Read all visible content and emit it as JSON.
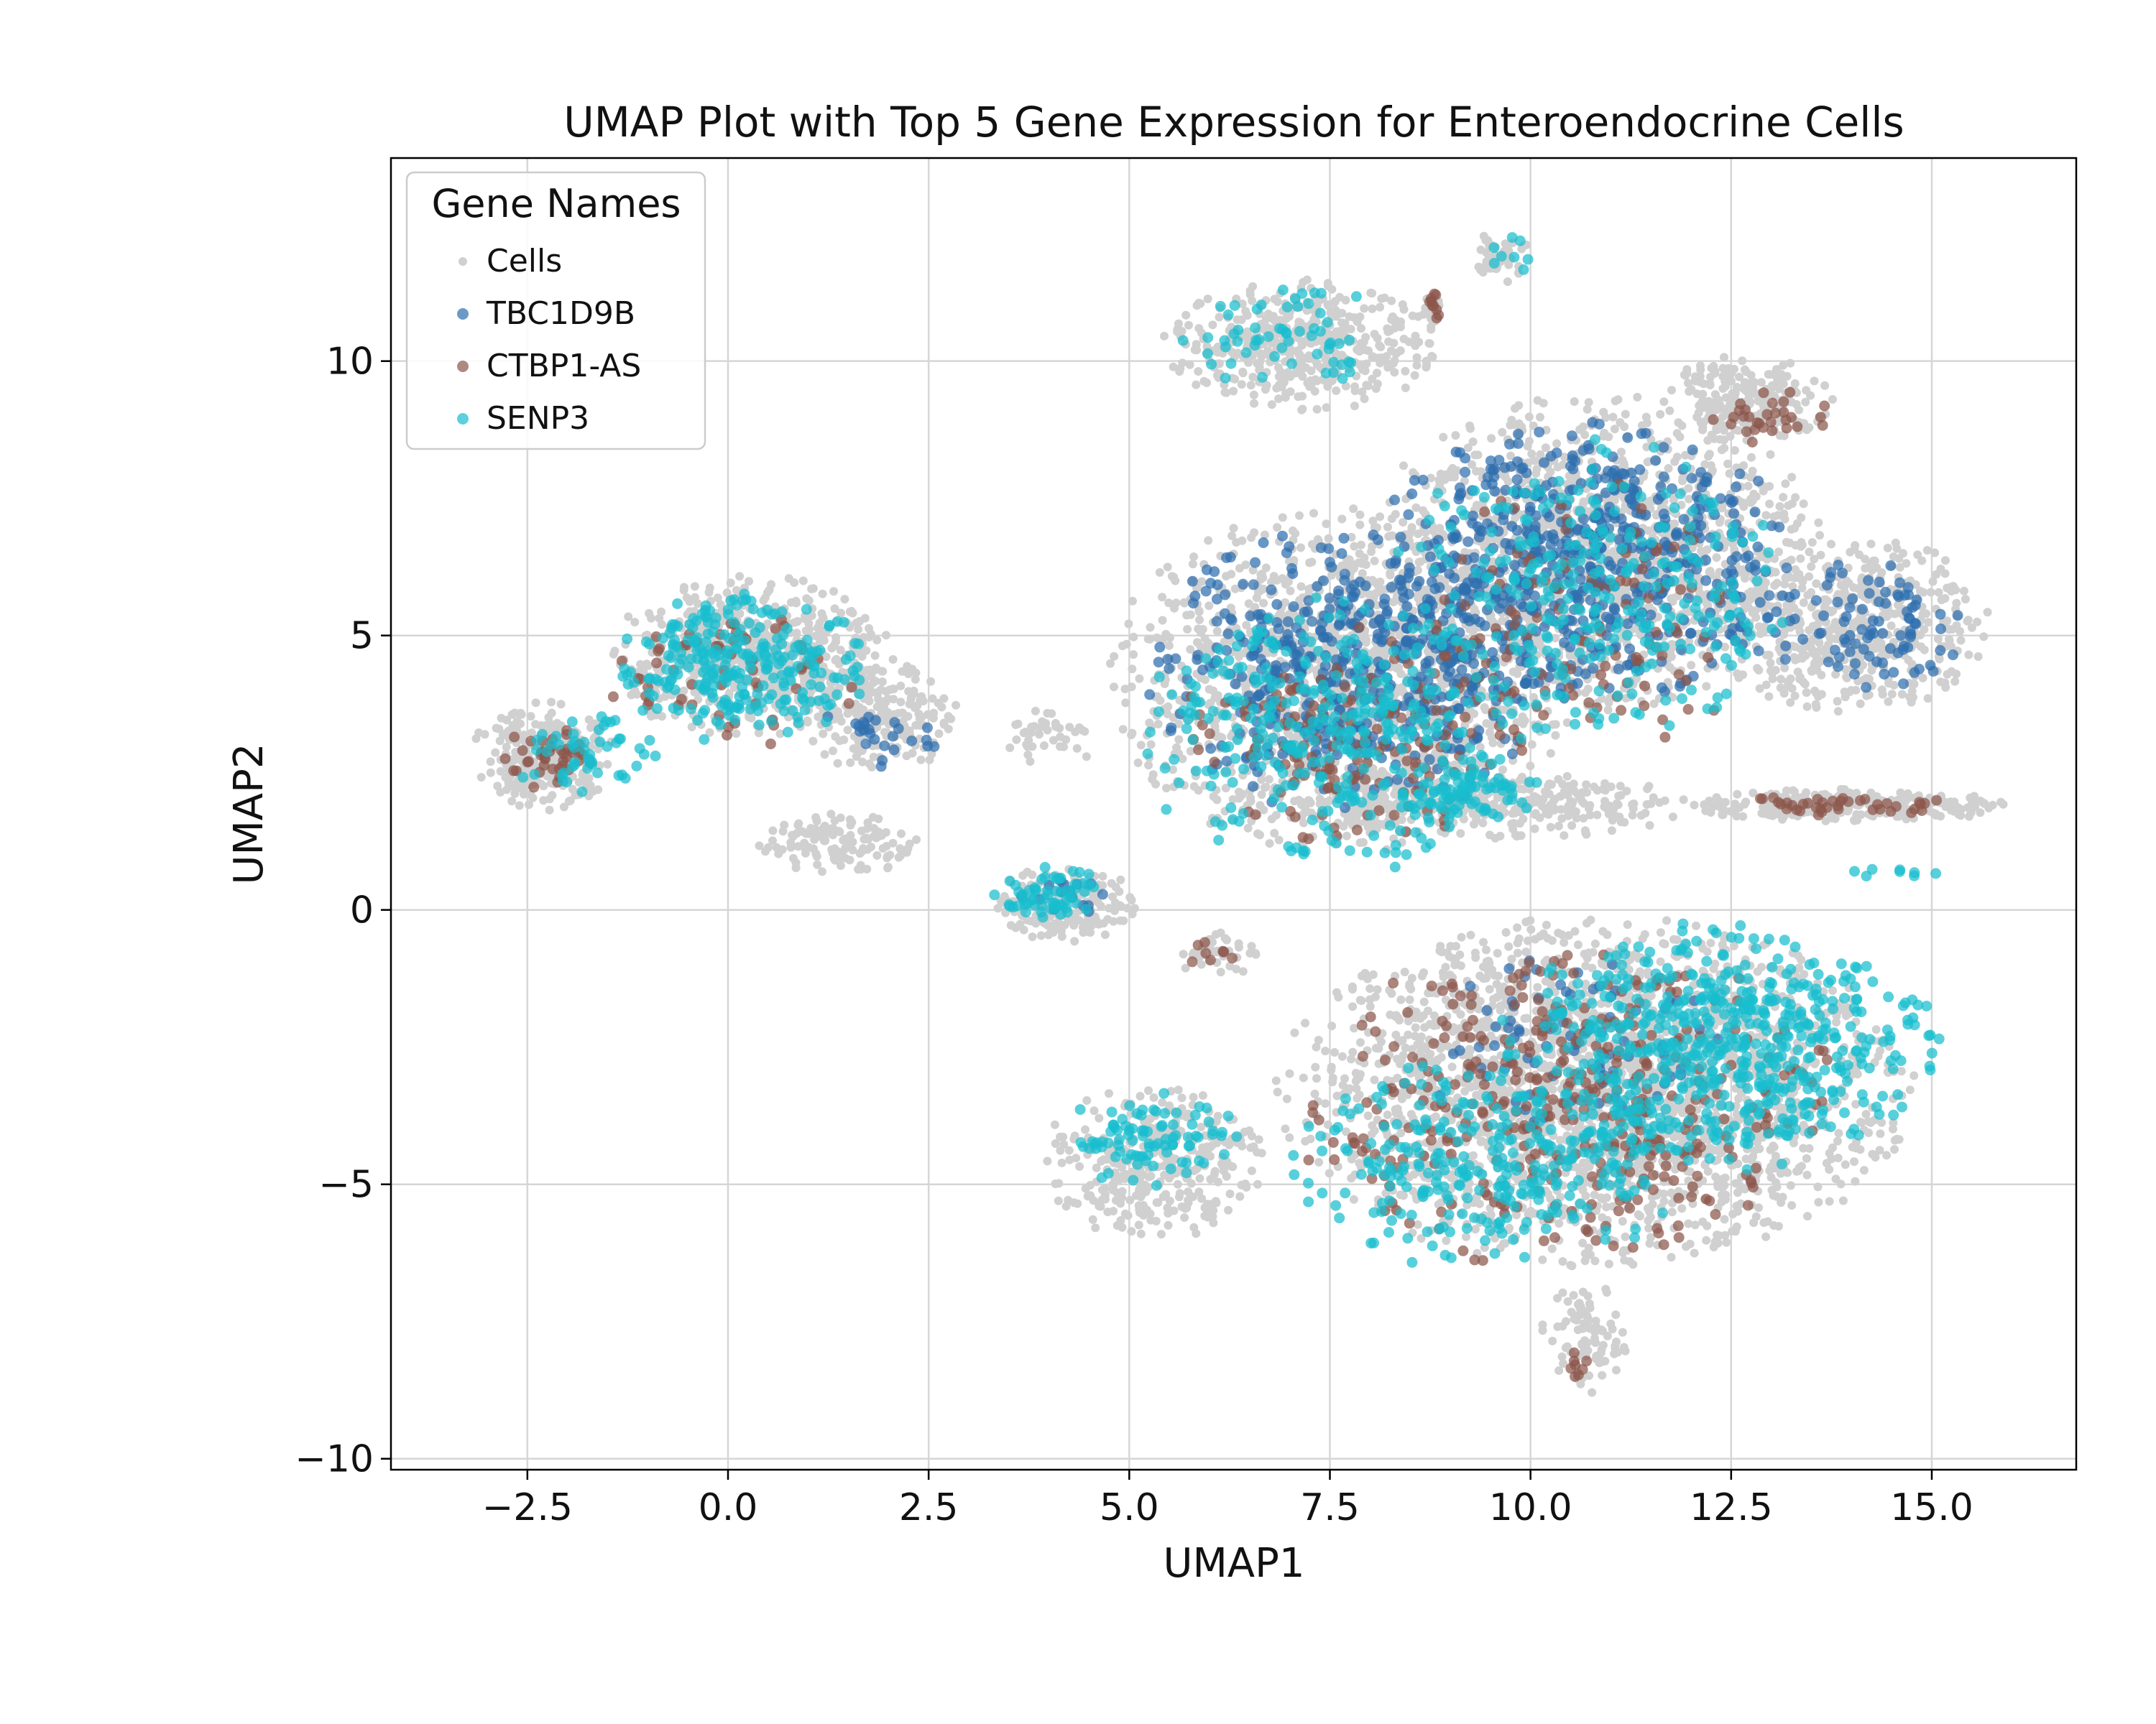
{
  "chart_data": {
    "type": "scatter",
    "title": "UMAP Plot with Top 5 Gene Expression for Enteroendocrine Cells",
    "xlabel": "UMAP1",
    "ylabel": "UMAP2",
    "xlim": [
      -4.2,
      16.8
    ],
    "ylim": [
      -10.2,
      13.7
    ],
    "xticks": [
      -2.5,
      0.0,
      2.5,
      5.0,
      7.5,
      10.0,
      12.5,
      15.0
    ],
    "xtick_labels": [
      "−2.5",
      "0.0",
      "2.5",
      "5.0",
      "7.5",
      "10.0",
      "12.5",
      "15.0"
    ],
    "yticks": [
      -10,
      -5,
      0,
      5,
      10
    ],
    "ytick_labels": [
      "−10",
      "−5",
      "0",
      "5",
      "10"
    ],
    "grid": true,
    "legend": {
      "title": "Gene Names",
      "placement": "top-left"
    },
    "series": [
      {
        "name": "Cells",
        "color": "#d0d0d0",
        "regions": [
          {
            "cx": 7.7,
            "cy": 4.2,
            "rx": 3.0,
            "ry": 3.2,
            "n": 1400
          },
          {
            "cx": 10.8,
            "cy": 6.5,
            "rx": 2.9,
            "ry": 2.9,
            "n": 1300
          },
          {
            "cx": 14.0,
            "cy": 5.2,
            "rx": 1.8,
            "ry": 1.6,
            "n": 550
          },
          {
            "cx": 12.7,
            "cy": 9.3,
            "rx": 1.1,
            "ry": 0.8,
            "n": 220
          },
          {
            "cx": 7.2,
            "cy": 10.3,
            "rx": 1.8,
            "ry": 1.2,
            "n": 450
          },
          {
            "cx": 9.5,
            "cy": 1.9,
            "rx": 2.5,
            "ry": 0.6,
            "n": 350
          },
          {
            "cx": 14.0,
            "cy": 1.9,
            "rx": 2.0,
            "ry": 0.3,
            "n": 260
          },
          {
            "cx": 10.8,
            "cy": -3.3,
            "rx": 4.0,
            "ry": 3.2,
            "n": 2400
          },
          {
            "cx": 5.3,
            "cy": -4.6,
            "rx": 1.5,
            "ry": 1.4,
            "n": 350
          },
          {
            "cx": 10.7,
            "cy": -7.8,
            "rx": 0.6,
            "ry": 1.0,
            "n": 90
          },
          {
            "cx": 0.3,
            "cy": 4.6,
            "rx": 1.8,
            "ry": 1.5,
            "n": 650
          },
          {
            "cx": -2.3,
            "cy": 2.8,
            "rx": 0.9,
            "ry": 1.0,
            "n": 260
          },
          {
            "cx": 1.9,
            "cy": 3.5,
            "rx": 1.0,
            "ry": 1.0,
            "n": 180
          },
          {
            "cx": 1.4,
            "cy": 1.2,
            "rx": 1.1,
            "ry": 0.6,
            "n": 130
          },
          {
            "cx": 4.2,
            "cy": 0.1,
            "rx": 0.9,
            "ry": 0.7,
            "n": 230
          },
          {
            "cx": 9.6,
            "cy": 11.9,
            "rx": 0.4,
            "ry": 0.5,
            "n": 50
          },
          {
            "cx": 8.8,
            "cy": 10.9,
            "rx": 0.15,
            "ry": 0.4,
            "n": 25
          },
          {
            "cx": 6.1,
            "cy": -0.8,
            "rx": 0.6,
            "ry": 0.4,
            "n": 40
          },
          {
            "cx": 4.0,
            "cy": 3.1,
            "rx": 0.6,
            "ry": 0.6,
            "n": 40
          }
        ]
      },
      {
        "name": "TBC1D9B",
        "color": "#2e6fae",
        "regions": [
          {
            "cx": 7.8,
            "cy": 4.3,
            "rx": 2.6,
            "ry": 2.7,
            "n": 500
          },
          {
            "cx": 10.7,
            "cy": 6.3,
            "rx": 2.7,
            "ry": 2.6,
            "n": 600
          },
          {
            "cx": 14.2,
            "cy": 5.2,
            "rx": 1.3,
            "ry": 1.2,
            "n": 90
          },
          {
            "cx": 10.6,
            "cy": -2.4,
            "rx": 2.0,
            "ry": 2.0,
            "n": 80
          },
          {
            "cx": 1.9,
            "cy": 3.2,
            "rx": 0.8,
            "ry": 0.6,
            "n": 25
          },
          {
            "cx": 4.2,
            "cy": 0.2,
            "rx": 0.6,
            "ry": 0.4,
            "n": 15
          }
        ]
      },
      {
        "name": "CTBP1-AS",
        "color": "#8c564b",
        "regions": [
          {
            "cx": 7.8,
            "cy": 3.2,
            "rx": 2.2,
            "ry": 2.0,
            "n": 160
          },
          {
            "cx": 10.6,
            "cy": 5.3,
            "rx": 2.4,
            "ry": 2.6,
            "n": 110
          },
          {
            "cx": 13.0,
            "cy": 9.0,
            "rx": 0.8,
            "ry": 0.6,
            "n": 30
          },
          {
            "cx": 14.0,
            "cy": 1.9,
            "rx": 1.6,
            "ry": 0.2,
            "n": 40
          },
          {
            "cx": 10.5,
            "cy": -3.6,
            "rx": 3.5,
            "ry": 3.0,
            "n": 400
          },
          {
            "cx": 0.0,
            "cy": 4.2,
            "rx": 1.6,
            "ry": 1.3,
            "n": 60
          },
          {
            "cx": -2.3,
            "cy": 2.8,
            "rx": 0.7,
            "ry": 0.7,
            "n": 40
          },
          {
            "cx": 8.8,
            "cy": 11.0,
            "rx": 0.1,
            "ry": 0.25,
            "n": 10
          },
          {
            "cx": 10.6,
            "cy": -8.3,
            "rx": 0.2,
            "ry": 0.5,
            "n": 8
          },
          {
            "cx": 6.1,
            "cy": -0.8,
            "rx": 0.5,
            "ry": 0.3,
            "n": 8
          }
        ]
      },
      {
        "name": "SENP3",
        "color": "#17becf",
        "regions": [
          {
            "cx": 7.5,
            "cy": 3.2,
            "rx": 2.4,
            "ry": 2.6,
            "n": 350
          },
          {
            "cx": 10.7,
            "cy": 5.8,
            "rx": 2.5,
            "ry": 2.8,
            "n": 300
          },
          {
            "cx": 9.2,
            "cy": 2.1,
            "rx": 1.1,
            "ry": 0.5,
            "n": 70
          },
          {
            "cx": 12.3,
            "cy": -2.5,
            "rx": 2.8,
            "ry": 2.3,
            "n": 600
          },
          {
            "cx": 9.5,
            "cy": -4.6,
            "rx": 2.5,
            "ry": 2.0,
            "n": 300
          },
          {
            "cx": 5.3,
            "cy": -4.2,
            "rx": 1.2,
            "ry": 0.9,
            "n": 90
          },
          {
            "cx": 0.2,
            "cy": 4.4,
            "rx": 1.6,
            "ry": 1.4,
            "n": 260
          },
          {
            "cx": -1.8,
            "cy": 2.8,
            "rx": 0.9,
            "ry": 0.9,
            "n": 50
          },
          {
            "cx": 4.0,
            "cy": 0.3,
            "rx": 0.7,
            "ry": 0.5,
            "n": 60
          },
          {
            "cx": 7.0,
            "cy": 10.4,
            "rx": 1.5,
            "ry": 1.0,
            "n": 60
          },
          {
            "cx": 9.7,
            "cy": 11.9,
            "rx": 0.3,
            "ry": 0.4,
            "n": 8
          },
          {
            "cx": 14.5,
            "cy": 0.7,
            "rx": 0.6,
            "ry": 0.2,
            "n": 8
          }
        ]
      }
    ]
  }
}
